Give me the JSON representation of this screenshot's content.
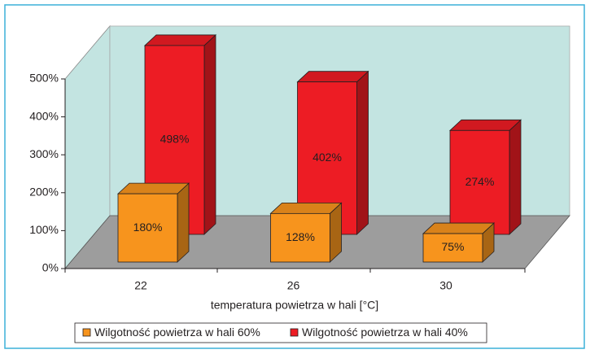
{
  "chart_data": {
    "type": "bar3d",
    "categories": [
      "22",
      "26",
      "30"
    ],
    "x_label": "temperatura powietrza w hali [°C]",
    "series": [
      {
        "name": "Wilgotność powietrza w hali 60%",
        "color": "#f7941d",
        "values": [
          180,
          128,
          75
        ],
        "value_labels": [
          "180%",
          "128%",
          "75%"
        ]
      },
      {
        "name": "Wilgotność powietrza w hali 40%",
        "color": "#ed1c24",
        "values": [
          498,
          402,
          274
        ],
        "value_labels": [
          "498%",
          "402%",
          "274%"
        ]
      }
    ],
    "ylim": [
      0,
      500
    ],
    "yticks": [
      {
        "value": 0,
        "label": "0%"
      },
      {
        "value": 100,
        "label": "100%"
      },
      {
        "value": 200,
        "label": "200%"
      },
      {
        "value": 300,
        "label": "300%"
      },
      {
        "value": 400,
        "label": "400%"
      },
      {
        "value": 500,
        "label": "500%"
      }
    ],
    "legend": "bottom"
  }
}
